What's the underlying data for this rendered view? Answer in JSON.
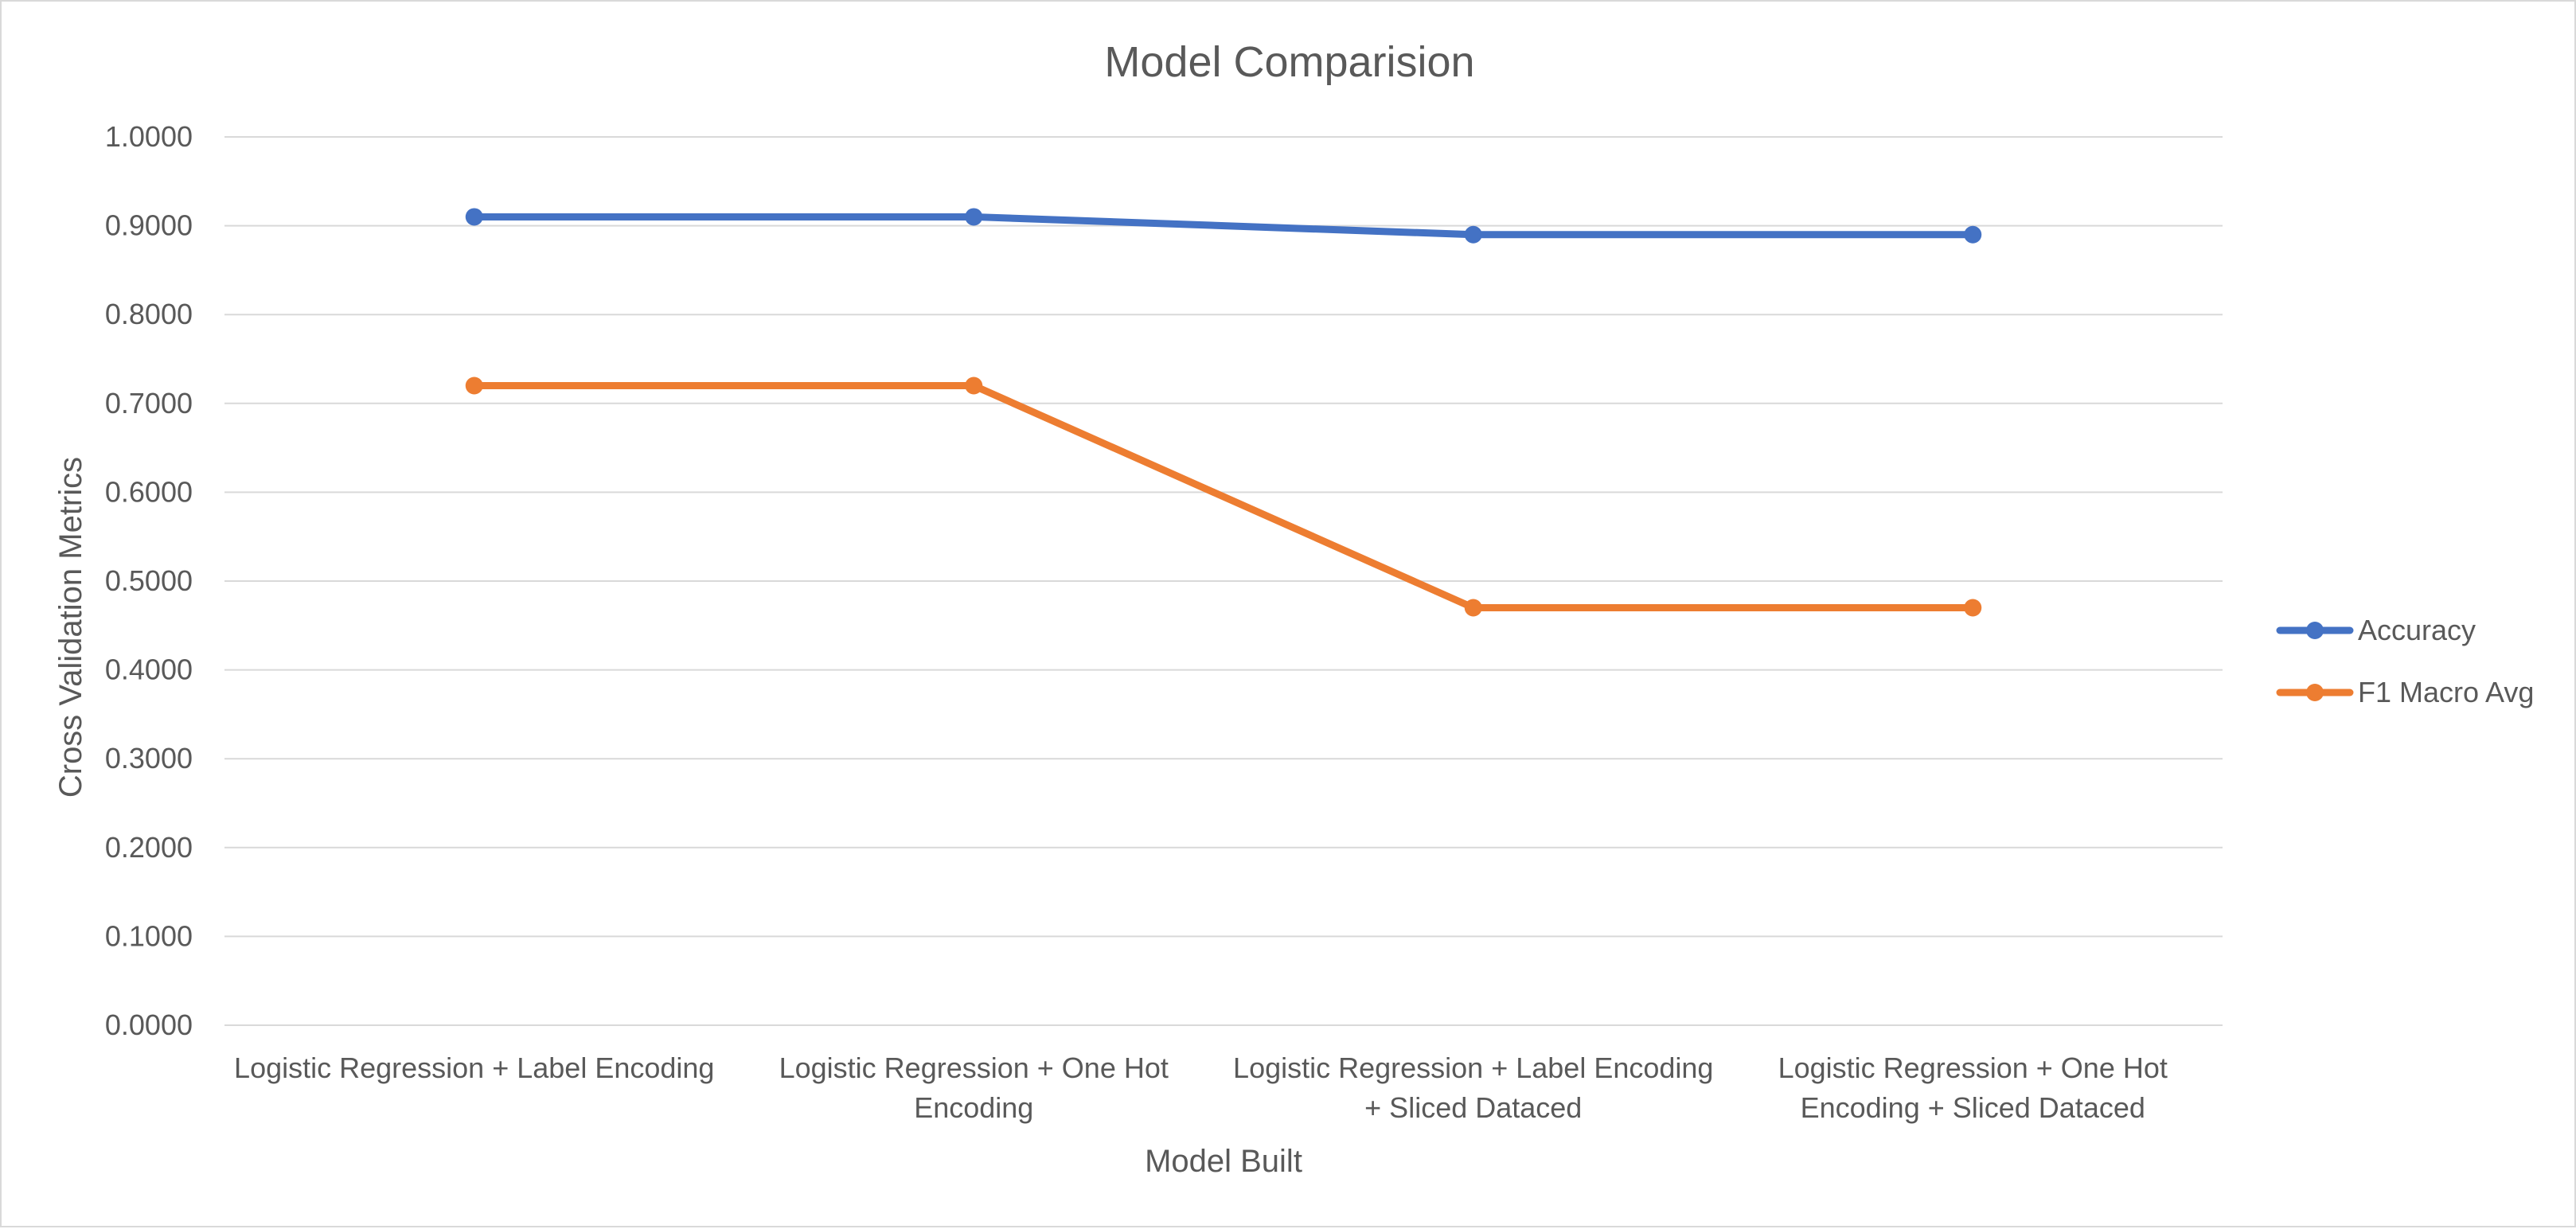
{
  "chart_data": {
    "type": "line",
    "title": "Model Comparision",
    "xlabel": "Model Built",
    "ylabel": "Cross Validation Metrics",
    "categories": [
      [
        "Logistic Regression + Label Encoding"
      ],
      [
        "Logistic Regression + One Hot",
        "Encoding"
      ],
      [
        "Logistic Regression + Label Encoding",
        "+ Sliced Dataced"
      ],
      [
        "Logistic Regression + One Hot",
        "Encoding + Sliced Dataced"
      ]
    ],
    "ylim": [
      0,
      1
    ],
    "yticks": [
      "0.0000",
      "0.1000",
      "0.2000",
      "0.3000",
      "0.4000",
      "0.5000",
      "0.6000",
      "0.7000",
      "0.8000",
      "0.9000",
      "1.0000"
    ],
    "grid": true,
    "legend_position": "right",
    "series": [
      {
        "name": "Accuracy",
        "color": "#4472C4",
        "values": [
          0.91,
          0.91,
          0.89,
          0.89
        ]
      },
      {
        "name": "F1 Macro Avg",
        "color": "#ED7D31",
        "values": [
          0.72,
          0.72,
          0.47,
          0.47
        ]
      }
    ]
  }
}
